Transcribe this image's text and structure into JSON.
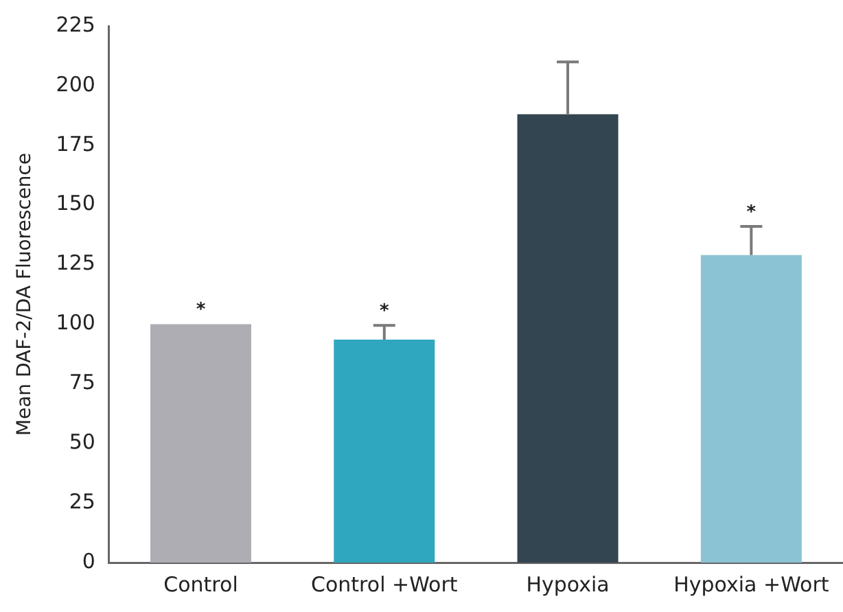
{
  "chart_data": {
    "type": "bar",
    "ylabel": "Mean DAF-2/DA Fluorescence",
    "categories": [
      "Control",
      "Control +Wort",
      "Hypoxia",
      "Hypoxia +Wort"
    ],
    "values": [
      100,
      93.5,
      188,
      129
    ],
    "colors": [
      "#aeadb3",
      "#2fa7bf",
      "#324550",
      "#8bc3d4"
    ],
    "errors": [
      null,
      [
        93.5,
        99.5
      ],
      [
        188,
        210
      ],
      [
        129,
        141
      ]
    ],
    "ylim": [
      0,
      225
    ],
    "yticks": [
      0,
      25,
      50,
      75,
      100,
      125,
      150,
      175,
      200,
      225
    ],
    "grid": false,
    "legend": false,
    "annotations": [
      {
        "text": "*",
        "x": "Control",
        "y": 100
      },
      {
        "text": "*",
        "x": "Control +Wort",
        "y": 99.5
      },
      {
        "text": "*",
        "x": "Hypoxia +Wort",
        "y": 141
      }
    ]
  }
}
